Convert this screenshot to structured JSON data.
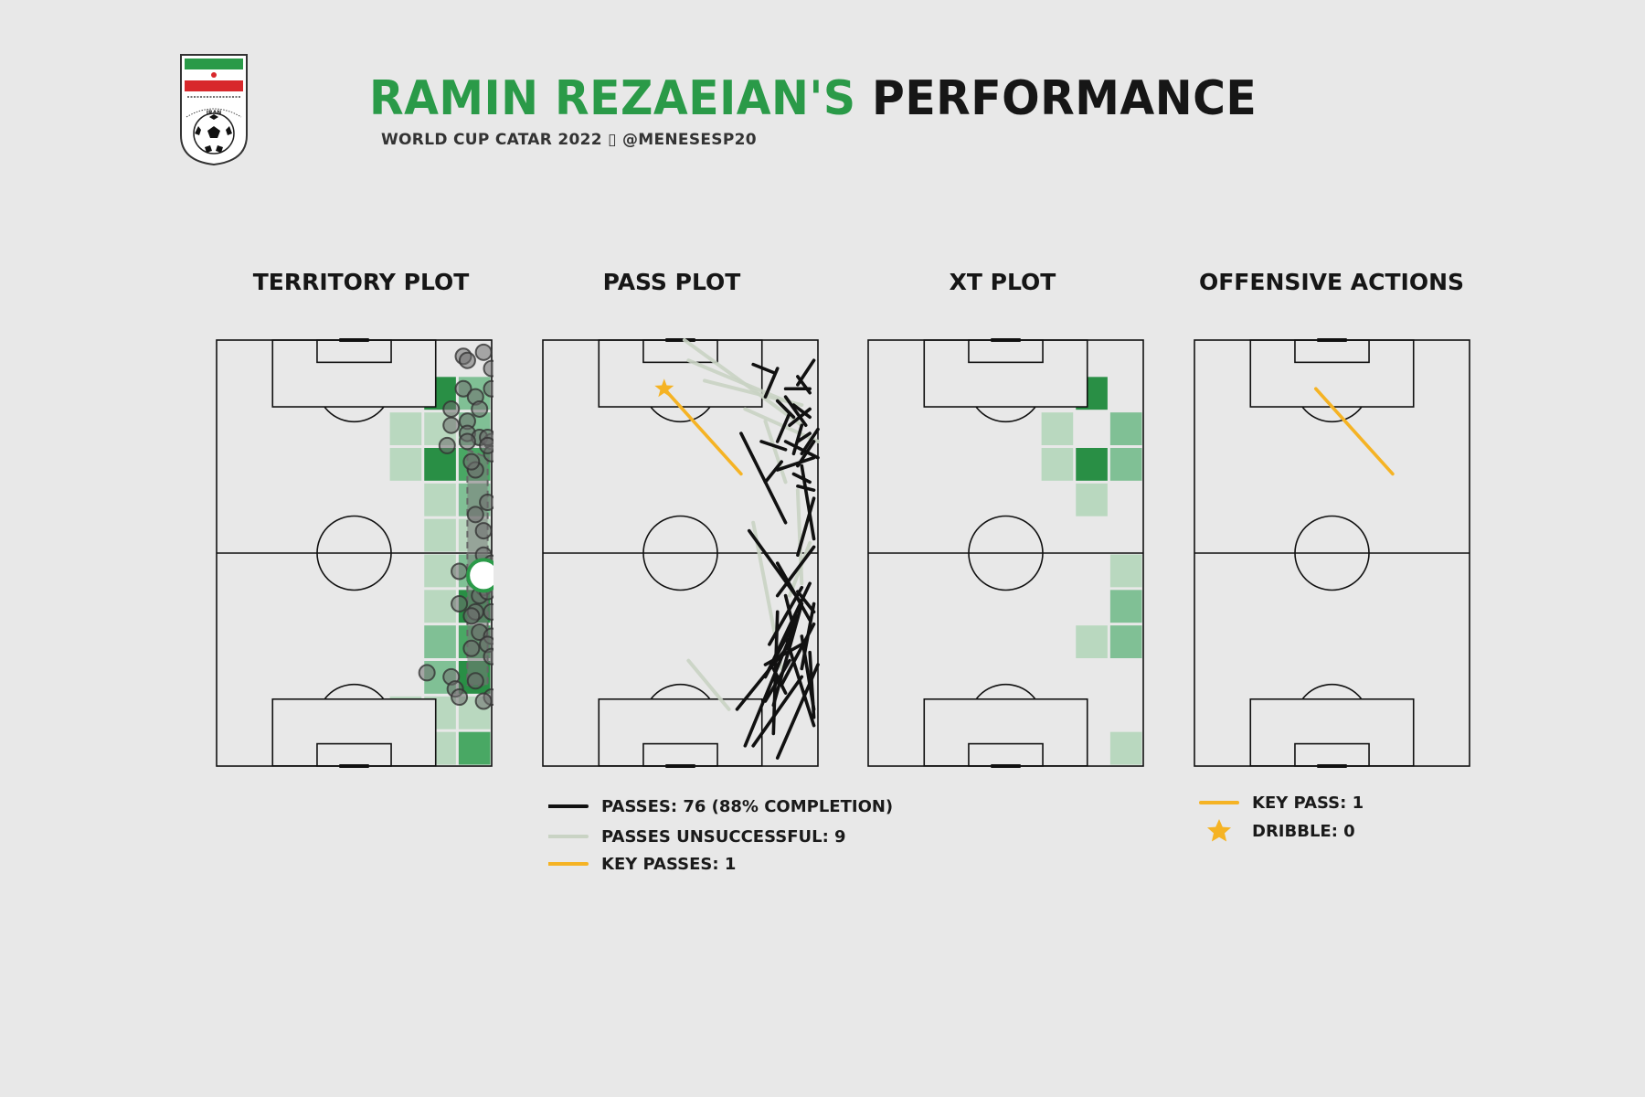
{
  "header": {
    "title_name": "RAMIN REZAEIAN'S",
    "title_rest": "PERFORMANCE",
    "subtitle": "WORLD CUP CATAR 2022 ▯ @MENESESP20"
  },
  "logo": {
    "icon": "iran-football-federation-crest-icon",
    "crest_text": "IRAN"
  },
  "colors": {
    "accent_green": "#2a9a48",
    "dark_green": "#1f7a38",
    "light_green": "#a9d3b2",
    "pass_complete": "#111111",
    "pass_unsuccessful": "#c9d3c4",
    "key_pass": "#f5b324",
    "background": "#e8e8e8"
  },
  "panels": [
    {
      "id": "territory",
      "title": "TERRITORY PLOT"
    },
    {
      "id": "pass",
      "title": "PASS PLOT"
    },
    {
      "id": "xt",
      "title": "XT PLOT"
    },
    {
      "id": "offensive",
      "title": "OFFENSIVE ACTIONS"
    }
  ],
  "legend_pass": [
    {
      "type": "line",
      "color": "#111111",
      "label": "PASSES: 76 (88% COMPLETION)"
    },
    {
      "type": "line",
      "color": "#c9d3c4",
      "label": "PASSES UNSUCCESSFUL: 9"
    },
    {
      "type": "line",
      "color": "#f5b324",
      "label": "KEY PASSES: 1"
    }
  ],
  "legend_offensive": [
    {
      "type": "line",
      "color": "#f5b324",
      "label": "KEY PASS: 1"
    },
    {
      "type": "star",
      "color": "#f5b324",
      "label": "DRIBBLE: 0"
    }
  ],
  "chart_data": [
    {
      "type": "heatmap",
      "panel": "territory",
      "pitch": {
        "length": 105,
        "width": 68,
        "orientation": "vertical",
        "attack": "up"
      },
      "grid": {
        "cols": 8,
        "rows": 12
      },
      "bins": [
        [
          6,
          1,
          1
        ],
        [
          7,
          1,
          0.55
        ],
        [
          5,
          2,
          0.3
        ],
        [
          6,
          2,
          0.45
        ],
        [
          7,
          2,
          0.5
        ],
        [
          5,
          3,
          0.35
        ],
        [
          6,
          3,
          1
        ],
        [
          7,
          3,
          0.8
        ],
        [
          6,
          4,
          0.45
        ],
        [
          7,
          4,
          0.5
        ],
        [
          6,
          5,
          0.25
        ],
        [
          7,
          5,
          0.3
        ],
        [
          6,
          6,
          0.3
        ],
        [
          7,
          6,
          0.5
        ],
        [
          6,
          7,
          0.4
        ],
        [
          7,
          7,
          1
        ],
        [
          6,
          8,
          0.55
        ],
        [
          7,
          8,
          0.85
        ],
        [
          6,
          9,
          0.6
        ],
        [
          7,
          9,
          1
        ],
        [
          5,
          10,
          0.4
        ],
        [
          6,
          10,
          0.3
        ],
        [
          7,
          10,
          0.45
        ],
        [
          5,
          11,
          0.35
        ],
        [
          6,
          11,
          0.3
        ],
        [
          7,
          11,
          0.75
        ]
      ],
      "touches": [
        [
          61,
          101
        ],
        [
          62,
          100
        ],
        [
          66,
          102
        ],
        [
          68,
          98
        ],
        [
          61,
          93
        ],
        [
          68,
          93
        ],
        [
          64,
          91
        ],
        [
          58,
          88
        ],
        [
          65,
          88
        ],
        [
          62,
          85
        ],
        [
          58,
          84
        ],
        [
          62,
          82
        ],
        [
          65,
          81
        ],
        [
          68,
          80
        ],
        [
          68,
          77
        ],
        [
          64,
          73
        ],
        [
          57,
          79
        ],
        [
          62,
          80
        ],
        [
          67,
          81
        ],
        [
          67,
          79
        ],
        [
          63,
          75
        ],
        [
          67,
          65
        ],
        [
          64,
          62
        ],
        [
          66,
          58
        ],
        [
          66,
          52
        ],
        [
          68,
          50
        ],
        [
          60,
          48
        ],
        [
          67,
          47
        ],
        [
          64,
          46
        ],
        [
          66,
          44
        ],
        [
          65,
          42
        ],
        [
          67,
          43
        ],
        [
          60,
          40
        ],
        [
          64,
          38
        ],
        [
          68,
          38
        ],
        [
          63,
          37
        ],
        [
          65,
          33
        ],
        [
          68,
          32
        ],
        [
          63,
          29
        ],
        [
          67,
          30
        ],
        [
          68,
          27
        ],
        [
          52,
          23
        ],
        [
          58,
          22
        ],
        [
          64,
          21
        ],
        [
          59,
          19
        ],
        [
          60,
          17
        ],
        [
          68,
          17
        ],
        [
          66,
          16
        ]
      ],
      "average_position": [
        66,
        47
      ],
      "convex_hull": [
        [
          62,
          78
        ],
        [
          67,
          76
        ],
        [
          67,
          20
        ],
        [
          62,
          20
        ]
      ]
    },
    {
      "type": "line",
      "panel": "pass",
      "pitch": {
        "length": 105,
        "width": 68,
        "orientation": "vertical",
        "attack": "up"
      },
      "passes_completed": 76,
      "completion_pct": 88,
      "passes_unsuccessful_count": 9,
      "key_passes_count": 1,
      "completed": [
        [
          49,
          82,
          60,
          60
        ],
        [
          62,
          34,
          50,
          5
        ],
        [
          64,
          22,
          52,
          5
        ],
        [
          61,
          30,
          48,
          14
        ],
        [
          64,
          40,
          57,
          15
        ],
        [
          66,
          45,
          55,
          22
        ],
        [
          58,
          50,
          66,
          36
        ],
        [
          63,
          37,
          55,
          22
        ],
        [
          68,
          25,
          58,
          2
        ],
        [
          51,
          58,
          64,
          40
        ],
        [
          67,
          10,
          60,
          32
        ],
        [
          61,
          26,
          55,
          16
        ],
        [
          67,
          35,
          59,
          20
        ],
        [
          64,
          44,
          56,
          30
        ],
        [
          58,
          42,
          67,
          54
        ],
        [
          64,
          24,
          67,
          40
        ],
        [
          67,
          66,
          63,
          52
        ],
        [
          57,
          24,
          60,
          18
        ],
        [
          67,
          14,
          64,
          32
        ],
        [
          62,
          34,
          60,
          42
        ],
        [
          63,
          43,
          67,
          38
        ],
        [
          64,
          30,
          55,
          25
        ],
        [
          66,
          28,
          67,
          12
        ],
        [
          58,
          38,
          57,
          8
        ],
        [
          67,
          56,
          64,
          74
        ],
        [
          59,
          75,
          55,
          70
        ],
        [
          63,
          69,
          67,
          68
        ],
        [
          62,
          77,
          64,
          84
        ],
        [
          62,
          89,
          66,
          86
        ],
        [
          52,
          99,
          57,
          97
        ],
        [
          61,
          87,
          58,
          80
        ],
        [
          63,
          80,
          66,
          82
        ],
        [
          67,
          80,
          63,
          74
        ],
        [
          68,
          76,
          60,
          80
        ],
        [
          54,
          80,
          60,
          78
        ],
        [
          58,
          73,
          67,
          76
        ],
        [
          58,
          90,
          62,
          86
        ],
        [
          66,
          93,
          60,
          93
        ],
        [
          60,
          91,
          65,
          84
        ],
        [
          64,
          77,
          68,
          83
        ],
        [
          66,
          92,
          63,
          96
        ],
        [
          67,
          100,
          63,
          94
        ],
        [
          55,
          91,
          58,
          98
        ],
        [
          62,
          72,
          66,
          70
        ],
        [
          66,
          88,
          61,
          84
        ]
      ],
      "unsuccessful": [
        [
          35,
          105,
          64,
          84
        ],
        [
          36,
          100,
          60,
          90
        ],
        [
          40,
          95,
          64,
          89
        ],
        [
          50,
          88,
          68,
          80
        ],
        [
          55,
          85,
          60,
          70
        ],
        [
          63,
          68,
          64,
          45
        ],
        [
          52,
          60,
          59,
          24
        ],
        [
          66,
          55,
          61,
          42
        ],
        [
          36,
          26,
          46,
          14
        ]
      ],
      "key_passes": [
        [
          30,
          93,
          49,
          72
        ]
      ]
    },
    {
      "type": "heatmap",
      "panel": "xt",
      "pitch": {
        "length": 105,
        "width": 68,
        "orientation": "vertical",
        "attack": "up"
      },
      "grid": {
        "cols": 8,
        "rows": 12
      },
      "bins": [
        [
          6,
          1,
          1
        ],
        [
          5,
          2,
          0.4
        ],
        [
          7,
          2,
          0.6
        ],
        [
          5,
          3,
          0.4
        ],
        [
          6,
          3,
          1
        ],
        [
          7,
          3,
          0.6
        ],
        [
          6,
          4,
          0.4
        ],
        [
          7,
          6,
          0.4
        ],
        [
          7,
          7,
          0.6
        ],
        [
          6,
          8,
          0.4
        ],
        [
          7,
          8,
          0.6
        ],
        [
          7,
          11,
          0.4
        ]
      ]
    },
    {
      "type": "line",
      "panel": "offensive",
      "pitch": {
        "length": 105,
        "width": 68,
        "orientation": "vertical",
        "attack": "up"
      },
      "key_passes": [
        [
          30,
          93,
          49,
          72
        ]
      ],
      "dribbles": []
    }
  ]
}
